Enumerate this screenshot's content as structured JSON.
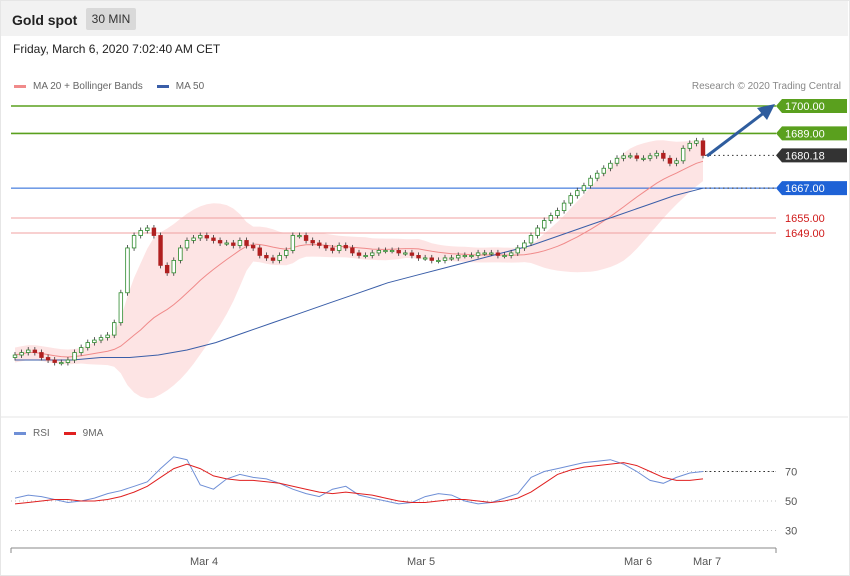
{
  "header": {
    "title": "Gold spot",
    "timeframe": "30 MIN"
  },
  "timestamp": "Friday, March 6, 2020 7:02:40 AM CET",
  "legend_main": [
    {
      "label": "MA 20 + Bollinger Bands",
      "color": "#f08a8a"
    },
    {
      "label": "MA 50",
      "color": "#3a5ea8"
    }
  ],
  "copyright": "Research © 2020 Trading Central",
  "legend_rsi": [
    {
      "label": "RSI",
      "color": "#6f8fd6"
    },
    {
      "label": "9MA",
      "color": "#e02020"
    }
  ],
  "colors": {
    "resistance": "#5aa01e",
    "support_blue": "#1e62d6",
    "support_red": "#f0a0a0",
    "current": "#333333",
    "arrow": "#2f5d9e",
    "candle_up": "#2d8a2d",
    "candle_down": "#b02020"
  },
  "chart_data": [
    {
      "type": "candlestick",
      "x_ticks": [
        "Mar 4",
        "Mar 5",
        "Mar 6",
        "Mar 7"
      ],
      "ylim": [
        1600,
        1708
      ],
      "levels": [
        {
          "value": 1700.0,
          "label": "1700.00",
          "kind": "resistance"
        },
        {
          "value": 1689.0,
          "label": "1689.00",
          "kind": "resistance"
        },
        {
          "value": 1680.18,
          "label": "1680.18",
          "kind": "current"
        },
        {
          "value": 1667.0,
          "label": "1667.00",
          "kind": "pivot"
        },
        {
          "value": 1655.0,
          "label": "1655.00",
          "kind": "support"
        },
        {
          "value": 1649.0,
          "label": "1649.00",
          "kind": "support"
        }
      ],
      "close_series": [
        1600,
        1601,
        1602,
        1601,
        1599,
        1598,
        1597,
        1597,
        1598,
        1601,
        1603,
        1605,
        1606,
        1607,
        1608,
        1613,
        1625,
        1643,
        1648,
        1650,
        1651,
        1648,
        1636,
        1633,
        1638,
        1643,
        1646,
        1647,
        1648,
        1647,
        1646,
        1645,
        1645,
        1644,
        1646,
        1644,
        1643,
        1640,
        1639,
        1638,
        1640,
        1642,
        1648,
        1648,
        1646,
        1645,
        1644,
        1643,
        1642,
        1644,
        1643,
        1641,
        1640,
        1640,
        1641,
        1642,
        1642,
        1642,
        1641,
        1641,
        1640,
        1639,
        1639,
        1638,
        1638,
        1639,
        1639,
        1640,
        1640,
        1640,
        1641,
        1641,
        1641,
        1640,
        1640,
        1641,
        1643,
        1645,
        1648,
        1651,
        1654,
        1656,
        1658,
        1661,
        1664,
        1666,
        1668,
        1671,
        1673,
        1675,
        1677,
        1679,
        1680,
        1680,
        1679,
        1679,
        1680,
        1681,
        1679,
        1677,
        1678,
        1683,
        1685,
        1686,
        1680.18
      ],
      "ma50_series": [
        1598,
        1598,
        1598,
        1599,
        1599,
        1600,
        1602,
        1605,
        1609,
        1613,
        1617,
        1621,
        1625,
        1629,
        1632,
        1635,
        1638,
        1641,
        1644,
        1648,
        1652,
        1656,
        1660,
        1664,
        1667
      ]
    },
    {
      "type": "line",
      "name": "RSI",
      "ylim": [
        20,
        85
      ],
      "y_ticks": [
        70,
        50,
        30
      ],
      "rsi_series": [
        52,
        54,
        53,
        51,
        49,
        50,
        52,
        55,
        57,
        60,
        63,
        72,
        80,
        78,
        61,
        58,
        65,
        68,
        66,
        65,
        62,
        58,
        55,
        53,
        58,
        60,
        54,
        52,
        50,
        48,
        49,
        53,
        55,
        54,
        50,
        48,
        49,
        52,
        55,
        66,
        70,
        72,
        74,
        76,
        77,
        78,
        75,
        70,
        64,
        62,
        66,
        69,
        70
      ],
      "ma_series": [
        48,
        49,
        50,
        51,
        51,
        50,
        50,
        51,
        53,
        56,
        60,
        66,
        72,
        75,
        72,
        67,
        65,
        64,
        64,
        63,
        62,
        60,
        58,
        56,
        55,
        56,
        55,
        54,
        52,
        50,
        49,
        49,
        50,
        51,
        51,
        50,
        49,
        50,
        52,
        56,
        62,
        68,
        71,
        73,
        74,
        75,
        76,
        74,
        70,
        66,
        64,
        64,
        65
      ]
    }
  ]
}
